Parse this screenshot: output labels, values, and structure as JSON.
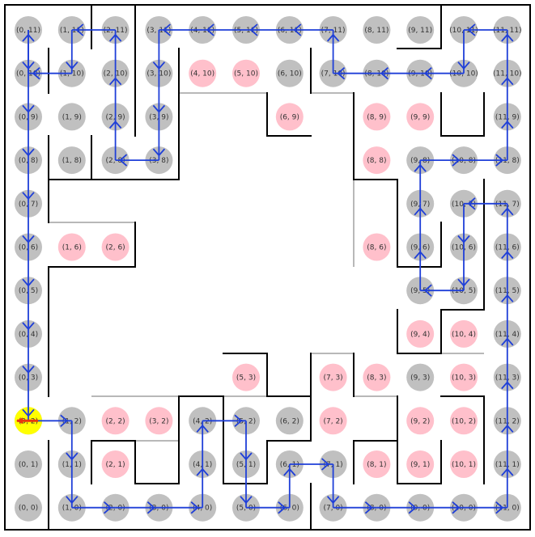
{
  "grid": {
    "cols": 12,
    "rows": 12
  },
  "colors": {
    "visited": "#c0c0c0",
    "unvisited": "#ffc0cb",
    "path": "#1f3fd8",
    "start": "#ffff00",
    "arrow": "#e8360f",
    "wall": "#000000",
    "open_wall": "#b8b8b8"
  },
  "visited_cells": [
    [
      0,
      11
    ],
    [
      1,
      11
    ],
    [
      2,
      11
    ],
    [
      3,
      11
    ],
    [
      4,
      11
    ],
    [
      5,
      11
    ],
    [
      6,
      11
    ],
    [
      7,
      11
    ],
    [
      8,
      11
    ],
    [
      9,
      11
    ],
    [
      10,
      11
    ],
    [
      11,
      11
    ],
    [
      0,
      10
    ],
    [
      1,
      10
    ],
    [
      2,
      10
    ],
    [
      3,
      10
    ],
    [
      6,
      10
    ],
    [
      7,
      10
    ],
    [
      8,
      10
    ],
    [
      9,
      10
    ],
    [
      10,
      10
    ],
    [
      11,
      10
    ],
    [
      0,
      9
    ],
    [
      1,
      9
    ],
    [
      2,
      9
    ],
    [
      3,
      9
    ],
    [
      11,
      9
    ],
    [
      0,
      8
    ],
    [
      1,
      8
    ],
    [
      2,
      8
    ],
    [
      3,
      8
    ],
    [
      9,
      8
    ],
    [
      10,
      8
    ],
    [
      11,
      8
    ],
    [
      0,
      7
    ],
    [
      9,
      7
    ],
    [
      10,
      7
    ],
    [
      11,
      7
    ],
    [
      0,
      6
    ],
    [
      9,
      6
    ],
    [
      10,
      6
    ],
    [
      11,
      6
    ],
    [
      0,
      5
    ],
    [
      9,
      5
    ],
    [
      10,
      5
    ],
    [
      11,
      5
    ],
    [
      0,
      4
    ],
    [
      11,
      4
    ],
    [
      0,
      3
    ],
    [
      9,
      3
    ],
    [
      11,
      3
    ],
    [
      0,
      2
    ],
    [
      1,
      2
    ],
    [
      4,
      2
    ],
    [
      5,
      2
    ],
    [
      6,
      2
    ],
    [
      11,
      2
    ],
    [
      0,
      1
    ],
    [
      1,
      1
    ],
    [
      4,
      1
    ],
    [
      5,
      1
    ],
    [
      6,
      1
    ],
    [
      7,
      1
    ],
    [
      11,
      1
    ],
    [
      0,
      0
    ],
    [
      1,
      0
    ],
    [
      2,
      0
    ],
    [
      3,
      0
    ],
    [
      4,
      0
    ],
    [
      5,
      0
    ],
    [
      6,
      0
    ],
    [
      7,
      0
    ],
    [
      8,
      0
    ],
    [
      9,
      0
    ],
    [
      10,
      0
    ],
    [
      11,
      0
    ]
  ],
  "unvisited_cells": [
    [
      4,
      10
    ],
    [
      5,
      10
    ],
    [
      6,
      9
    ],
    [
      8,
      9
    ],
    [
      9,
      9
    ],
    [
      8,
      8
    ],
    [
      1,
      6
    ],
    [
      2,
      6
    ],
    [
      8,
      6
    ],
    [
      9,
      4
    ],
    [
      10,
      4
    ],
    [
      5,
      3
    ],
    [
      7,
      3
    ],
    [
      8,
      3
    ],
    [
      10,
      3
    ],
    [
      2,
      2
    ],
    [
      3,
      2
    ],
    [
      7,
      2
    ],
    [
      9,
      2
    ],
    [
      10,
      2
    ],
    [
      2,
      1
    ],
    [
      8,
      1
    ],
    [
      9,
      1
    ],
    [
      10,
      1
    ]
  ],
  "cell_labels": {
    "0,11": "(0, 11)",
    "1,11": "(1, 11)",
    "2,11": "(2, 11)",
    "3,11": "(3, 11)",
    "4,11": "(4, 11)",
    "5,11": "(5, 11)",
    "6,11": "(6, 11)",
    "7,11": "(7, 11)",
    "8,11": "(8, 11)",
    "9,11": "(9, 11)",
    "10,11": "(10, 11)",
    "11,11": "(11, 11)",
    "0,10": "(0, 10)",
    "1,10": "(1, 10)",
    "2,10": "(2, 10)",
    "3,10": "(3, 10)",
    "4,10": "(4, 10)",
    "5,10": "(5, 10)",
    "6,10": "(6, 10)",
    "7,10": "(7, 10)",
    "8,10": "(8, 10)",
    "9,10": "(9, 10)",
    "10,10": "(10, 10)",
    "11,10": "(11, 10)",
    "0,9": "(0, 9)",
    "1,9": "(1, 9)",
    "2,9": "(2, 9)",
    "3,9": "(3, 9)",
    "6,9": "(6, 9)",
    "8,9": "(8, 9)",
    "9,9": "(9, 9)",
    "11,9": "(11, 9)",
    "0,8": "(0, 8)",
    "1,8": "(1, 8)",
    "2,8": "(2, 8)",
    "3,8": "(3, 8)",
    "8,8": "(8, 8)",
    "9,8": "(9, 8)",
    "10,8": "(10, 8)",
    "11,8": "(11, 8)",
    "0,7": "(0, 7)",
    "9,7": "(9, 7)",
    "10,7": "(10, 7)",
    "11,7": "(11, 7)",
    "0,6": "(0, 6)",
    "1,6": "(1, 6)",
    "2,6": "(2, 6)",
    "8,6": "(8, 6)",
    "9,6": "(9, 6)",
    "10,6": "(10, 6)",
    "11,6": "(11, 6)",
    "0,5": "(0, 5)",
    "9,5": "(9, 5)",
    "10,5": "(10, 5)",
    "11,5": "(11, 5)",
    "0,4": "(0, 4)",
    "9,4": "(9, 4)",
    "10,4": "(10, 4)",
    "11,4": "(11, 4)",
    "0,3": "(0, 3)",
    "5,3": "(5, 3)",
    "7,3": "(7, 3)",
    "8,3": "(8, 3)",
    "9,3": "(9, 3)",
    "10,3": "(10, 3)",
    "11,3": "(11, 3)",
    "0,2": "(0, 2)",
    "1,2": "(1, 2)",
    "2,2": "(2, 2)",
    "3,2": "(3, 2)",
    "4,2": "(4, 2)",
    "5,2": "(5, 2)",
    "6,2": "(6, 2)",
    "7,2": "(7, 2)",
    "9,2": "(9, 2)",
    "10,2": "(10, 2)",
    "11,2": "(11, 2)",
    "0,1": "(0, 1)",
    "1,1": "(1, 1)",
    "2,1": "(2, 1)",
    "4,1": "(4, 1)",
    "5,1": "(5, 1)",
    "6,1": "(6, 1)",
    "7,1": "(7, 1)",
    "8,1": "(8, 1)",
    "9,1": "(9, 1)",
    "10,1": "(10, 1)",
    "11,1": "(11, 1)",
    "0,0": "(0, 0)",
    "1,0": "(1, 0)",
    "2,0": "(2, 0)",
    "3,0": "(3, 0)",
    "4,0": "(4, 0)",
    "5,0": "(5, 0)",
    "6,0": "(6, 0)",
    "7,0": "(7, 0)",
    "8,0": "(8, 0)",
    "9,0": "(9, 0)",
    "10,0": "(10, 0)",
    "11,0": "(11, 0)"
  },
  "path": [
    [
      0,
      2
    ],
    [
      1,
      2
    ],
    [
      1,
      1
    ],
    [
      1,
      0
    ],
    [
      2,
      0
    ],
    [
      3,
      0
    ],
    [
      4,
      0
    ],
    [
      4,
      1
    ],
    [
      4,
      2
    ],
    [
      5,
      2
    ],
    [
      5,
      1
    ],
    [
      5,
      0
    ],
    [
      6,
      0
    ],
    [
      6,
      1
    ],
    [
      7,
      1
    ],
    [
      7,
      0
    ],
    [
      8,
      0
    ],
    [
      9,
      0
    ],
    [
      10,
      0
    ],
    [
      11,
      0
    ],
    [
      11,
      1
    ],
    [
      11,
      2
    ],
    [
      11,
      3
    ],
    [
      11,
      4
    ],
    [
      11,
      5
    ],
    [
      11,
      6
    ],
    [
      11,
      7
    ],
    [
      10,
      7
    ],
    [
      10,
      6
    ],
    [
      10,
      5
    ],
    [
      9,
      5
    ],
    [
      9,
      6
    ],
    [
      9,
      7
    ],
    [
      9,
      8
    ],
    [
      10,
      8
    ],
    [
      11,
      8
    ],
    [
      11,
      9
    ],
    [
      11,
      10
    ],
    [
      11,
      11
    ],
    [
      10,
      11
    ],
    [
      10,
      10
    ],
    [
      9,
      10
    ],
    [
      8,
      10
    ],
    [
      7,
      10
    ],
    [
      7,
      11
    ],
    [
      6,
      11
    ],
    [
      5,
      11
    ],
    [
      4,
      11
    ],
    [
      3,
      11
    ],
    [
      3,
      10
    ],
    [
      3,
      9
    ],
    [
      3,
      8
    ],
    [
      2,
      8
    ],
    [
      2,
      9
    ],
    [
      2,
      10
    ],
    [
      2,
      11
    ],
    [
      1,
      11
    ],
    [
      1,
      10
    ],
    [
      0,
      10
    ],
    [
      0,
      11
    ],
    [
      0,
      10
    ],
    [
      0,
      9
    ],
    [
      0,
      8
    ],
    [
      0,
      7
    ],
    [
      0,
      6
    ],
    [
      0,
      5
    ],
    [
      0,
      4
    ],
    [
      0,
      3
    ],
    [
      0,
      2
    ]
  ],
  "start_cell": [
    0,
    2
  ]
}
